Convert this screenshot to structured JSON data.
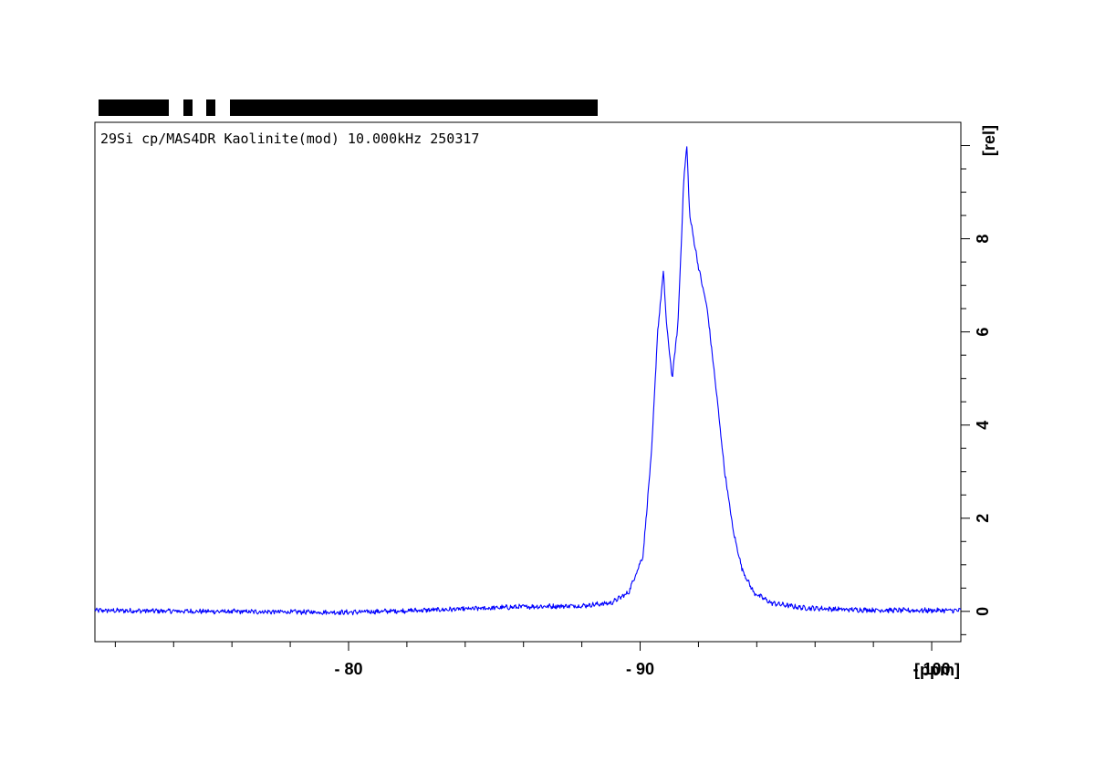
{
  "chart_data": {
    "type": "line",
    "title": "29Si cp/MAS4DR Kaolinite(mod) 10.000kHz 250317",
    "xlabel": "[ppm]",
    "ylabel": "[rel]",
    "xlim": [
      -71.3,
      -101.0
    ],
    "ylim": [
      -0.65,
      10.5
    ],
    "x_reversed": true,
    "grid": false,
    "xticks_major": [
      -80,
      -90,
      -100
    ],
    "xtick_labels": [
      "- 80",
      "- 90",
      "- 100"
    ],
    "yticks_major": [
      0,
      2,
      4,
      6,
      8
    ],
    "ytick_labels": [
      "0",
      "2",
      "4",
      "6",
      "8"
    ],
    "series": [
      {
        "color": "#0000ff",
        "peaks": [
          {
            "x": -90.8,
            "y": 7.3
          },
          {
            "x": -91.6,
            "y": 10.0
          }
        ],
        "points": [
          [
            -71.3,
            0.02
          ],
          [
            -75.0,
            0.0
          ],
          [
            -80.0,
            -0.02
          ],
          [
            -84.0,
            0.05
          ],
          [
            -86.0,
            0.1
          ],
          [
            -88.0,
            0.12
          ],
          [
            -89.0,
            0.18
          ],
          [
            -89.6,
            0.4
          ],
          [
            -90.1,
            1.2
          ],
          [
            -90.4,
            3.5
          ],
          [
            -90.6,
            6.0
          ],
          [
            -90.8,
            7.3
          ],
          [
            -90.9,
            6.2
          ],
          [
            -91.1,
            5.0
          ],
          [
            -91.3,
            6.2
          ],
          [
            -91.5,
            9.3
          ],
          [
            -91.6,
            10.0
          ],
          [
            -91.7,
            8.5
          ],
          [
            -92.0,
            7.4
          ],
          [
            -92.3,
            6.5
          ],
          [
            -92.6,
            4.8
          ],
          [
            -92.9,
            3.0
          ],
          [
            -93.2,
            1.7
          ],
          [
            -93.5,
            0.9
          ],
          [
            -93.9,
            0.4
          ],
          [
            -94.5,
            0.18
          ],
          [
            -95.5,
            0.08
          ],
          [
            -97.0,
            0.04
          ],
          [
            -99.0,
            0.02
          ],
          [
            -101.0,
            0.02
          ]
        ]
      }
    ]
  }
}
